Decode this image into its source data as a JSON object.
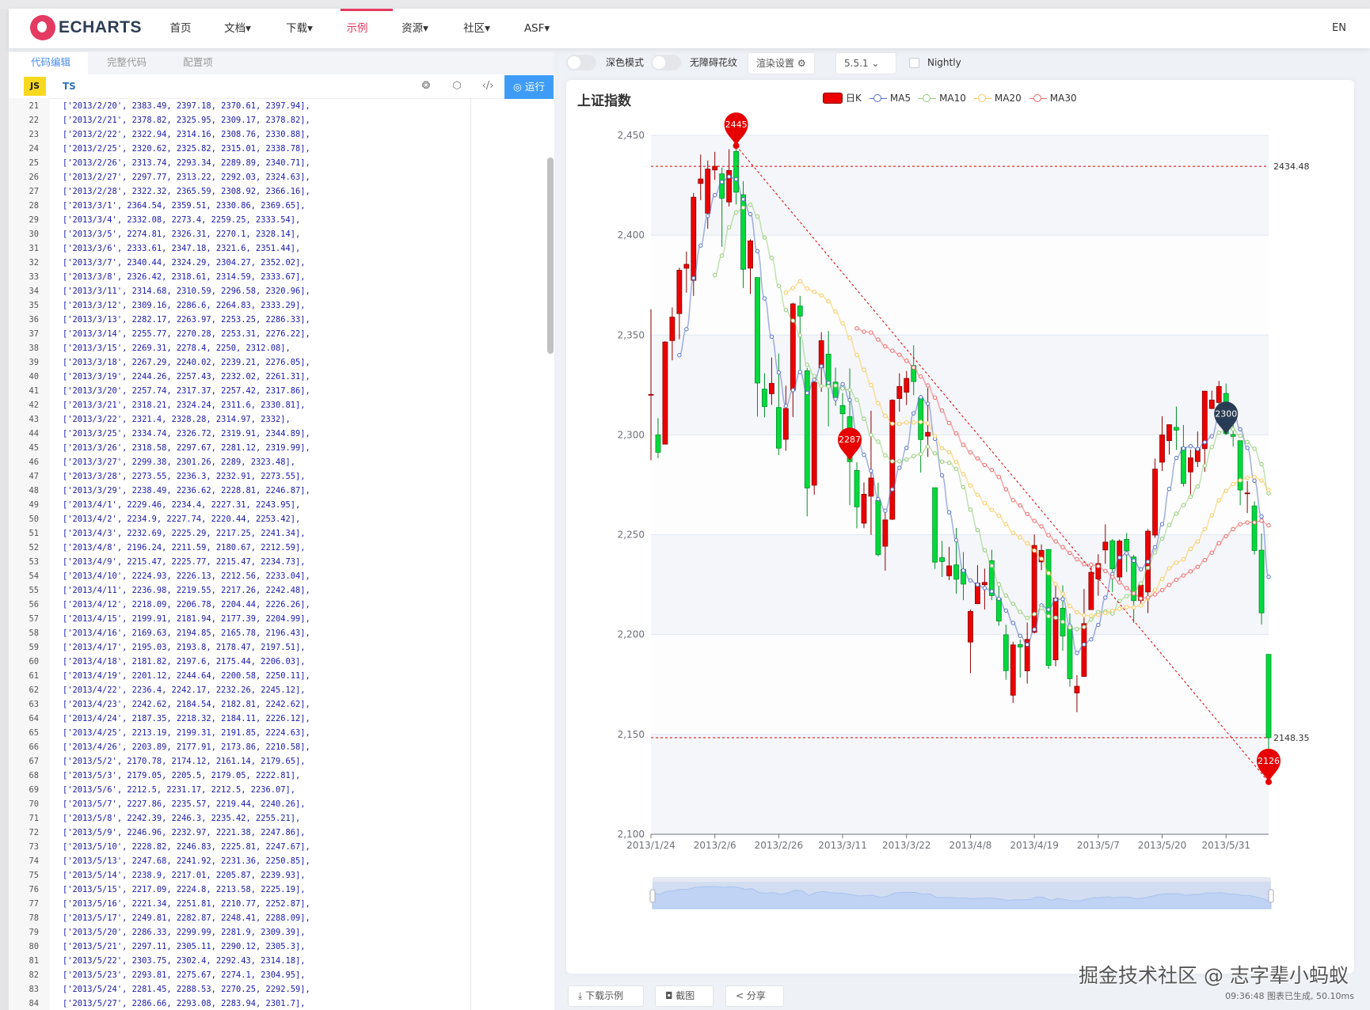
{
  "header": {
    "logo": "ECHARTS",
    "nav": [
      {
        "label": "首页"
      },
      {
        "label": "文档▾"
      },
      {
        "label": "下载▾"
      },
      {
        "label": "示例",
        "active": true
      },
      {
        "label": "资源▾"
      },
      {
        "label": "社区▾"
      },
      {
        "label": "ASF▾"
      }
    ],
    "lang": "EN"
  },
  "editor": {
    "tabs": [
      "代码编辑",
      "完整代码",
      "配置项"
    ],
    "lang_js": "JS",
    "lang_ts": "TS",
    "run_label": "◎ 运行",
    "lines": [
      [
        "21",
        "['2013/2/20', 2383.49, 2397.18, 2370.61, 2397.94],"
      ],
      [
        "22",
        "['2013/2/21', 2378.82, 2325.95, 2309.17, 2378.82],"
      ],
      [
        "23",
        "['2013/2/22', 2322.94, 2314.16, 2308.76, 2330.88],"
      ],
      [
        "24",
        "['2013/2/25', 2320.62, 2325.82, 2315.01, 2338.78],"
      ],
      [
        "25",
        "['2013/2/26', 2313.74, 2293.34, 2289.89, 2340.71],"
      ],
      [
        "26",
        "['2013/2/27', 2297.77, 2313.22, 2292.03, 2324.63],"
      ],
      [
        "27",
        "['2013/2/28', 2322.32, 2365.59, 2308.92, 2366.16],"
      ],
      [
        "28",
        "['2013/3/1', 2364.54, 2359.51, 2330.86, 2369.65],"
      ],
      [
        "29",
        "['2013/3/4', 2332.08, 2273.4, 2259.25, 2333.54],"
      ],
      [
        "30",
        "['2013/3/5', 2274.81, 2326.31, 2270.1, 2328.14],"
      ],
      [
        "31",
        "['2013/3/6', 2333.61, 2347.18, 2321.6, 2351.44],"
      ],
      [
        "32",
        "['2013/3/7', 2340.44, 2324.29, 2304.27, 2352.02],"
      ],
      [
        "33",
        "['2013/3/8', 2326.42, 2318.61, 2314.59, 2333.67],"
      ],
      [
        "34",
        "['2013/3/11', 2314.68, 2310.59, 2296.58, 2320.96],"
      ],
      [
        "35",
        "['2013/3/12', 2309.16, 2286.6, 2264.83, 2333.29],"
      ],
      [
        "36",
        "['2013/3/13', 2282.17, 2263.97, 2253.25, 2286.33],"
      ],
      [
        "37",
        "['2013/3/14', 2255.77, 2270.28, 2253.31, 2276.22],"
      ],
      [
        "38",
        "['2013/3/15', 2269.31, 2278.4, 2250, 2312.08],"
      ],
      [
        "39",
        "['2013/3/18', 2267.29, 2240.02, 2239.21, 2276.05],"
      ],
      [
        "40",
        "['2013/3/19', 2244.26, 2257.43, 2232.02, 2261.31],"
      ],
      [
        "41",
        "['2013/3/20', 2257.74, 2317.37, 2257.42, 2317.86],"
      ],
      [
        "42",
        "['2013/3/21', 2318.21, 2324.24, 2311.6, 2330.81],"
      ],
      [
        "43",
        "['2013/3/22', 2321.4, 2328.28, 2314.97, 2332],"
      ],
      [
        "44",
        "['2013/3/25', 2334.74, 2326.72, 2319.91, 2344.89],"
      ],
      [
        "45",
        "['2013/3/26', 2318.58, 2297.67, 2281.12, 2319.99],"
      ],
      [
        "46",
        "['2013/3/27', 2299.38, 2301.26, 2289, 2323.48],"
      ],
      [
        "47",
        "['2013/3/28', 2273.55, 2236.3, 2232.91, 2273.55],"
      ],
      [
        "48",
        "['2013/3/29', 2238.49, 2236.62, 2228.81, 2246.87],"
      ],
      [
        "49",
        "['2013/4/1', 2229.46, 2234.4, 2227.31, 2243.95],"
      ],
      [
        "50",
        "['2013/4/2', 2234.9, 2227.74, 2220.44, 2253.42],"
      ],
      [
        "51",
        "['2013/4/3', 2232.69, 2225.29, 2217.25, 2241.34],"
      ],
      [
        "52",
        "['2013/4/8', 2196.24, 2211.59, 2180.67, 2212.59],"
      ],
      [
        "53",
        "['2013/4/9', 2215.47, 2225.77, 2215.47, 2234.73],"
      ],
      [
        "54",
        "['2013/4/10', 2224.93, 2226.13, 2212.56, 2233.04],"
      ],
      [
        "55",
        "['2013/4/11', 2236.98, 2219.55, 2217.26, 2242.48],"
      ],
      [
        "56",
        "['2013/4/12', 2218.09, 2206.78, 2204.44, 2226.26],"
      ],
      [
        "57",
        "['2013/4/15', 2199.91, 2181.94, 2177.39, 2204.99],"
      ],
      [
        "58",
        "['2013/4/16', 2169.63, 2194.85, 2165.78, 2196.43],"
      ],
      [
        "59",
        "['2013/4/17', 2195.03, 2193.8, 2178.47, 2197.51],"
      ],
      [
        "60",
        "['2013/4/18', 2181.82, 2197.6, 2175.44, 2206.03],"
      ],
      [
        "61",
        "['2013/4/19', 2201.12, 2244.64, 2200.58, 2250.11],"
      ],
      [
        "62",
        "['2013/4/22', 2236.4, 2242.17, 2232.26, 2245.12],"
      ],
      [
        "63",
        "['2013/4/23', 2242.62, 2184.54, 2182.81, 2242.62],"
      ],
      [
        "64",
        "['2013/4/24', 2187.35, 2218.32, 2184.11, 2226.12],"
      ],
      [
        "65",
        "['2013/4/25', 2213.19, 2199.31, 2191.85, 2224.63],"
      ],
      [
        "66",
        "['2013/4/26', 2203.89, 2177.91, 2173.86, 2210.58],"
      ],
      [
        "67",
        "['2013/5/2', 2170.78, 2174.12, 2161.14, 2179.65],"
      ],
      [
        "68",
        "['2013/5/3', 2179.05, 2205.5, 2179.05, 2222.81],"
      ],
      [
        "69",
        "['2013/5/6', 2212.5, 2231.17, 2212.5, 2236.07],"
      ],
      [
        "70",
        "['2013/5/7', 2227.86, 2235.57, 2219.44, 2240.26],"
      ],
      [
        "71",
        "['2013/5/8', 2242.39, 2246.3, 2235.42, 2255.21],"
      ],
      [
        "72",
        "['2013/5/9', 2246.96, 2232.97, 2221.38, 2247.86],"
      ],
      [
        "73",
        "['2013/5/10', 2228.82, 2246.83, 2225.81, 2247.67],"
      ],
      [
        "74",
        "['2013/5/13', 2247.68, 2241.92, 2231.36, 2250.85],"
      ],
      [
        "75",
        "['2013/5/14', 2238.9, 2217.01, 2205.87, 2239.93],"
      ],
      [
        "76",
        "['2013/5/15', 2217.09, 2224.8, 2213.58, 2225.19],"
      ],
      [
        "77",
        "['2013/5/16', 2221.34, 2251.81, 2210.77, 2252.87],"
      ],
      [
        "78",
        "['2013/5/17', 2249.81, 2282.87, 2248.41, 2288.09],"
      ],
      [
        "79",
        "['2013/5/20', 2286.33, 2299.99, 2281.9, 2309.39],"
      ],
      [
        "80",
        "['2013/5/21', 2297.11, 2305.11, 2290.12, 2305.3],"
      ],
      [
        "81",
        "['2013/5/22', 2303.75, 2302.4, 2292.43, 2314.18],"
      ],
      [
        "82",
        "['2013/5/23', 2293.81, 2275.67, 2274.1, 2304.95],"
      ],
      [
        "83",
        "['2013/5/24', 2281.45, 2288.53, 2270.25, 2292.59],"
      ],
      [
        "84",
        "['2013/5/27', 2286.66, 2293.08, 2283.94, 2301.7],"
      ]
    ]
  },
  "toolbar": {
    "dark_mode": "深色模式",
    "aria": "无障碍花纹",
    "render_settings": "渲染设置 ⚙",
    "version": "5.5.1 ⌄",
    "nightly": "Nightly"
  },
  "footer": {
    "download": "⤓  下载示例",
    "screenshot": "◘  截图",
    "share": "<  分享",
    "status": "09:36:48   图表已生成, 50.10ms",
    "watermark": "掘金技术社区 @ 志字辈小蚂蚁"
  },
  "colors": {
    "up": "#ec0000",
    "up_border": "#8a0000",
    "down": "#00da3c",
    "down_border": "#008f28",
    "ma5": "#5470c6",
    "ma10": "#91cc75",
    "ma20": "#fac858",
    "ma30": "#ee6666",
    "mark": "#e60000",
    "mark_dark": "#293c55",
    "accent": "#e43961",
    "run": "#3f9cf6"
  },
  "chart_data": {
    "type": "candlestick",
    "title": "上证指数",
    "legend": [
      "日K",
      "MA5",
      "MA10",
      "MA20",
      "MA30"
    ],
    "legend_position": "top-center",
    "ylim": [
      2100,
      2450
    ],
    "y_tick_labels": [
      "2,100",
      "2,150",
      "2,200",
      "2,250",
      "2,300",
      "2,350",
      "2,400",
      "2,450"
    ],
    "x_tick_labels": [
      "2013/1/24",
      "2013/2/6",
      "2013/2/26",
      "2013/3/11",
      "2013/3/22",
      "2013/4/8",
      "2013/4/19",
      "2013/5/7",
      "2013/5/20",
      "2013/5/31"
    ],
    "grid": true,
    "candles_format": [
      "date",
      "open",
      "close",
      "low",
      "high"
    ],
    "candles": [
      [
        "2013/1/24",
        2320.26,
        2320.26,
        2287.3,
        2362.94
      ],
      [
        "2013/1/25",
        2300,
        2291.3,
        2288.26,
        2308.38
      ],
      [
        "2013/1/28",
        2295.35,
        2346.5,
        2295.35,
        2346.92
      ],
      [
        "2013/1/29",
        2347.22,
        2358.98,
        2337.35,
        2363.8
      ],
      [
        "2013/1/30",
        2360.75,
        2382.48,
        2347.89,
        2383.76
      ],
      [
        "2013/1/31",
        2383.43,
        2385.42,
        2371.23,
        2391.82
      ],
      [
        "2013/2/1",
        2377.41,
        2419.02,
        2369.57,
        2421.15
      ],
      [
        "2013/2/4",
        2425.92,
        2428.15,
        2417.58,
        2440.38
      ],
      [
        "2013/2/5",
        2411,
        2433.13,
        2403.3,
        2437.42
      ],
      [
        "2013/2/6",
        2432.68,
        2434.48,
        2427.7,
        2441.73
      ],
      [
        "2013/2/7",
        2430.69,
        2418.53,
        2394.22,
        2433.89
      ],
      [
        "2013/2/8",
        2416.62,
        2432.4,
        2414.4,
        2443.03
      ],
      [
        "2013/2/18",
        2441.91,
        2421.56,
        2415.43,
        2444.8
      ],
      [
        "2013/2/19",
        2420.26,
        2382.91,
        2373.53,
        2427.07
      ],
      [
        "2013/2/20",
        2383.49,
        2397.18,
        2370.61,
        2397.94
      ],
      [
        "2013/2/21",
        2378.82,
        2325.95,
        2309.17,
        2378.82
      ],
      [
        "2013/2/22",
        2322.94,
        2314.16,
        2308.76,
        2330.88
      ],
      [
        "2013/2/25",
        2320.62,
        2325.82,
        2315.01,
        2338.78
      ],
      [
        "2013/2/26",
        2313.74,
        2293.34,
        2289.89,
        2340.71
      ],
      [
        "2013/2/27",
        2297.77,
        2313.22,
        2292.03,
        2324.63
      ],
      [
        "2013/2/28",
        2322.32,
        2365.59,
        2308.92,
        2366.16
      ],
      [
        "2013/3/1",
        2364.54,
        2359.51,
        2330.86,
        2369.65
      ],
      [
        "2013/3/4",
        2332.08,
        2273.4,
        2259.25,
        2333.54
      ],
      [
        "2013/3/5",
        2274.81,
        2326.31,
        2270.1,
        2328.14
      ],
      [
        "2013/3/6",
        2333.61,
        2347.18,
        2321.6,
        2351.44
      ],
      [
        "2013/3/7",
        2340.44,
        2324.29,
        2304.27,
        2352.02
      ],
      [
        "2013/3/8",
        2326.42,
        2318.61,
        2314.59,
        2333.67
      ],
      [
        "2013/3/11",
        2314.68,
        2310.59,
        2296.58,
        2320.96
      ],
      [
        "2013/3/12",
        2309.16,
        2286.6,
        2264.83,
        2333.29
      ],
      [
        "2013/3/13",
        2282.17,
        2263.97,
        2253.25,
        2286.33
      ],
      [
        "2013/3/14",
        2255.77,
        2270.28,
        2253.31,
        2276.22
      ],
      [
        "2013/3/15",
        2269.31,
        2278.4,
        2250,
        2312.08
      ],
      [
        "2013/3/18",
        2267.29,
        2240.02,
        2239.21,
        2276.05
      ],
      [
        "2013/3/19",
        2244.26,
        2257.43,
        2232.02,
        2261.31
      ],
      [
        "2013/3/20",
        2257.74,
        2317.37,
        2257.42,
        2317.86
      ],
      [
        "2013/3/21",
        2318.21,
        2324.24,
        2311.6,
        2330.81
      ],
      [
        "2013/3/22",
        2321.4,
        2328.28,
        2314.97,
        2332
      ],
      [
        "2013/3/25",
        2334.74,
        2326.72,
        2319.91,
        2344.89
      ],
      [
        "2013/3/26",
        2318.58,
        2297.67,
        2281.12,
        2319.99
      ],
      [
        "2013/3/27",
        2299.38,
        2301.26,
        2289,
        2323.48
      ],
      [
        "2013/3/28",
        2273.55,
        2236.3,
        2232.91,
        2273.55
      ],
      [
        "2013/3/29",
        2238.49,
        2236.62,
        2228.81,
        2246.87
      ],
      [
        "2013/4/1",
        2229.46,
        2234.4,
        2227.31,
        2243.95
      ],
      [
        "2013/4/2",
        2234.9,
        2227.74,
        2220.44,
        2253.42
      ],
      [
        "2013/4/3",
        2232.69,
        2225.29,
        2217.25,
        2241.34
      ],
      [
        "2013/4/8",
        2196.24,
        2211.59,
        2180.67,
        2212.59
      ],
      [
        "2013/4/9",
        2215.47,
        2225.77,
        2215.47,
        2234.73
      ],
      [
        "2013/4/10",
        2224.93,
        2226.13,
        2212.56,
        2233.04
      ],
      [
        "2013/4/11",
        2236.98,
        2219.55,
        2217.26,
        2242.48
      ],
      [
        "2013/4/12",
        2218.09,
        2206.78,
        2204.44,
        2226.26
      ],
      [
        "2013/4/15",
        2199.91,
        2181.94,
        2177.39,
        2204.99
      ],
      [
        "2013/4/16",
        2169.63,
        2194.85,
        2165.78,
        2196.43
      ],
      [
        "2013/4/17",
        2195.03,
        2193.8,
        2178.47,
        2197.51
      ],
      [
        "2013/4/18",
        2181.82,
        2197.6,
        2175.44,
        2206.03
      ],
      [
        "2013/4/19",
        2201.12,
        2244.64,
        2200.58,
        2250.11
      ],
      [
        "2013/4/22",
        2236.4,
        2242.17,
        2232.26,
        2245.12
      ],
      [
        "2013/4/23",
        2242.62,
        2184.54,
        2182.81,
        2242.62
      ],
      [
        "2013/4/24",
        2187.35,
        2218.32,
        2184.11,
        2226.12
      ],
      [
        "2013/4/25",
        2213.19,
        2199.31,
        2191.85,
        2224.63
      ],
      [
        "2013/4/26",
        2203.89,
        2177.91,
        2173.86,
        2210.58
      ],
      [
        "2013/5/2",
        2170.78,
        2174.12,
        2161.14,
        2179.65
      ],
      [
        "2013/5/3",
        2179.05,
        2205.5,
        2179.05,
        2222.81
      ],
      [
        "2013/5/6",
        2212.5,
        2231.17,
        2212.5,
        2236.07
      ],
      [
        "2013/5/7",
        2227.86,
        2235.57,
        2219.44,
        2240.26
      ],
      [
        "2013/5/8",
        2242.39,
        2246.3,
        2235.42,
        2255.21
      ],
      [
        "2013/5/9",
        2246.96,
        2232.97,
        2221.38,
        2247.86
      ],
      [
        "2013/5/10",
        2228.82,
        2246.83,
        2225.81,
        2247.67
      ],
      [
        "2013/5/13",
        2247.68,
        2241.92,
        2231.36,
        2250.85
      ],
      [
        "2013/5/14",
        2238.9,
        2217.01,
        2205.87,
        2239.93
      ],
      [
        "2013/5/15",
        2217.09,
        2224.8,
        2213.58,
        2225.19
      ],
      [
        "2013/5/16",
        2221.34,
        2251.81,
        2210.77,
        2252.87
      ],
      [
        "2013/5/17",
        2249.81,
        2282.87,
        2248.41,
        2288.09
      ],
      [
        "2013/5/20",
        2286.33,
        2299.99,
        2281.9,
        2309.39
      ],
      [
        "2013/5/21",
        2297.11,
        2305.11,
        2290.12,
        2305.3
      ],
      [
        "2013/5/22",
        2303.75,
        2302.4,
        2292.43,
        2314.18
      ],
      [
        "2013/5/23",
        2293.81,
        2275.67,
        2274.1,
        2304.95
      ],
      [
        "2013/5/24",
        2281.45,
        2288.53,
        2270.25,
        2292.59
      ],
      [
        "2013/5/27",
        2286.66,
        2293.08,
        2283.94,
        2301.7
      ],
      [
        "2013/5/28",
        2293.1,
        2321.89,
        2281.47,
        2322.1
      ],
      [
        "2013/5/29",
        2313.21,
        2317.45,
        2312.88,
        2322.18
      ],
      [
        "2013/5/30",
        2316.25,
        2324.24,
        2307.38,
        2327.05
      ],
      [
        "2013/5/31",
        2320.74,
        2300.59,
        2299.97,
        2325.72
      ],
      [
        "2013/6/3",
        2300.21,
        2299.25,
        2294.11,
        2313.43
      ],
      [
        "2013/6/4",
        2297.1,
        2272.42,
        2264.76,
        2297.1
      ],
      [
        "2013/6/5",
        2270.71,
        2270.93,
        2260.87,
        2276.86
      ],
      [
        "2013/6/6",
        2264.43,
        2242.11,
        2240.07,
        2266.69
      ],
      [
        "2013/6/7",
        2242.26,
        2210.9,
        2205.07,
        2250.63
      ],
      [
        "2013/6/13",
        2190.1,
        2148.35,
        2126.22,
        2190.1
      ]
    ],
    "mark_points": [
      {
        "label": "2445",
        "date": "2013/2/18",
        "value": 2444.8,
        "dark": false
      },
      {
        "label": "2287",
        "date": "2013/3/12",
        "value": 2287,
        "dark": false
      },
      {
        "label": "2300",
        "date": "2013/5/31",
        "value": 2300,
        "dark": true
      },
      {
        "label": "2126",
        "date": "2013/6/13",
        "value": 2126.22,
        "dark": false
      }
    ],
    "mark_lines": [
      {
        "label": "2434.48",
        "value": 2434.48
      },
      {
        "label": "2148.35",
        "value": 2148.35
      }
    ],
    "trend_line": {
      "from": {
        "date": "2013/2/18",
        "value": 2444.8
      },
      "to": {
        "date": "2013/6/13",
        "value": 2126.22
      }
    },
    "data_zoom": {
      "start_percent": 0,
      "end_percent": 100
    }
  }
}
